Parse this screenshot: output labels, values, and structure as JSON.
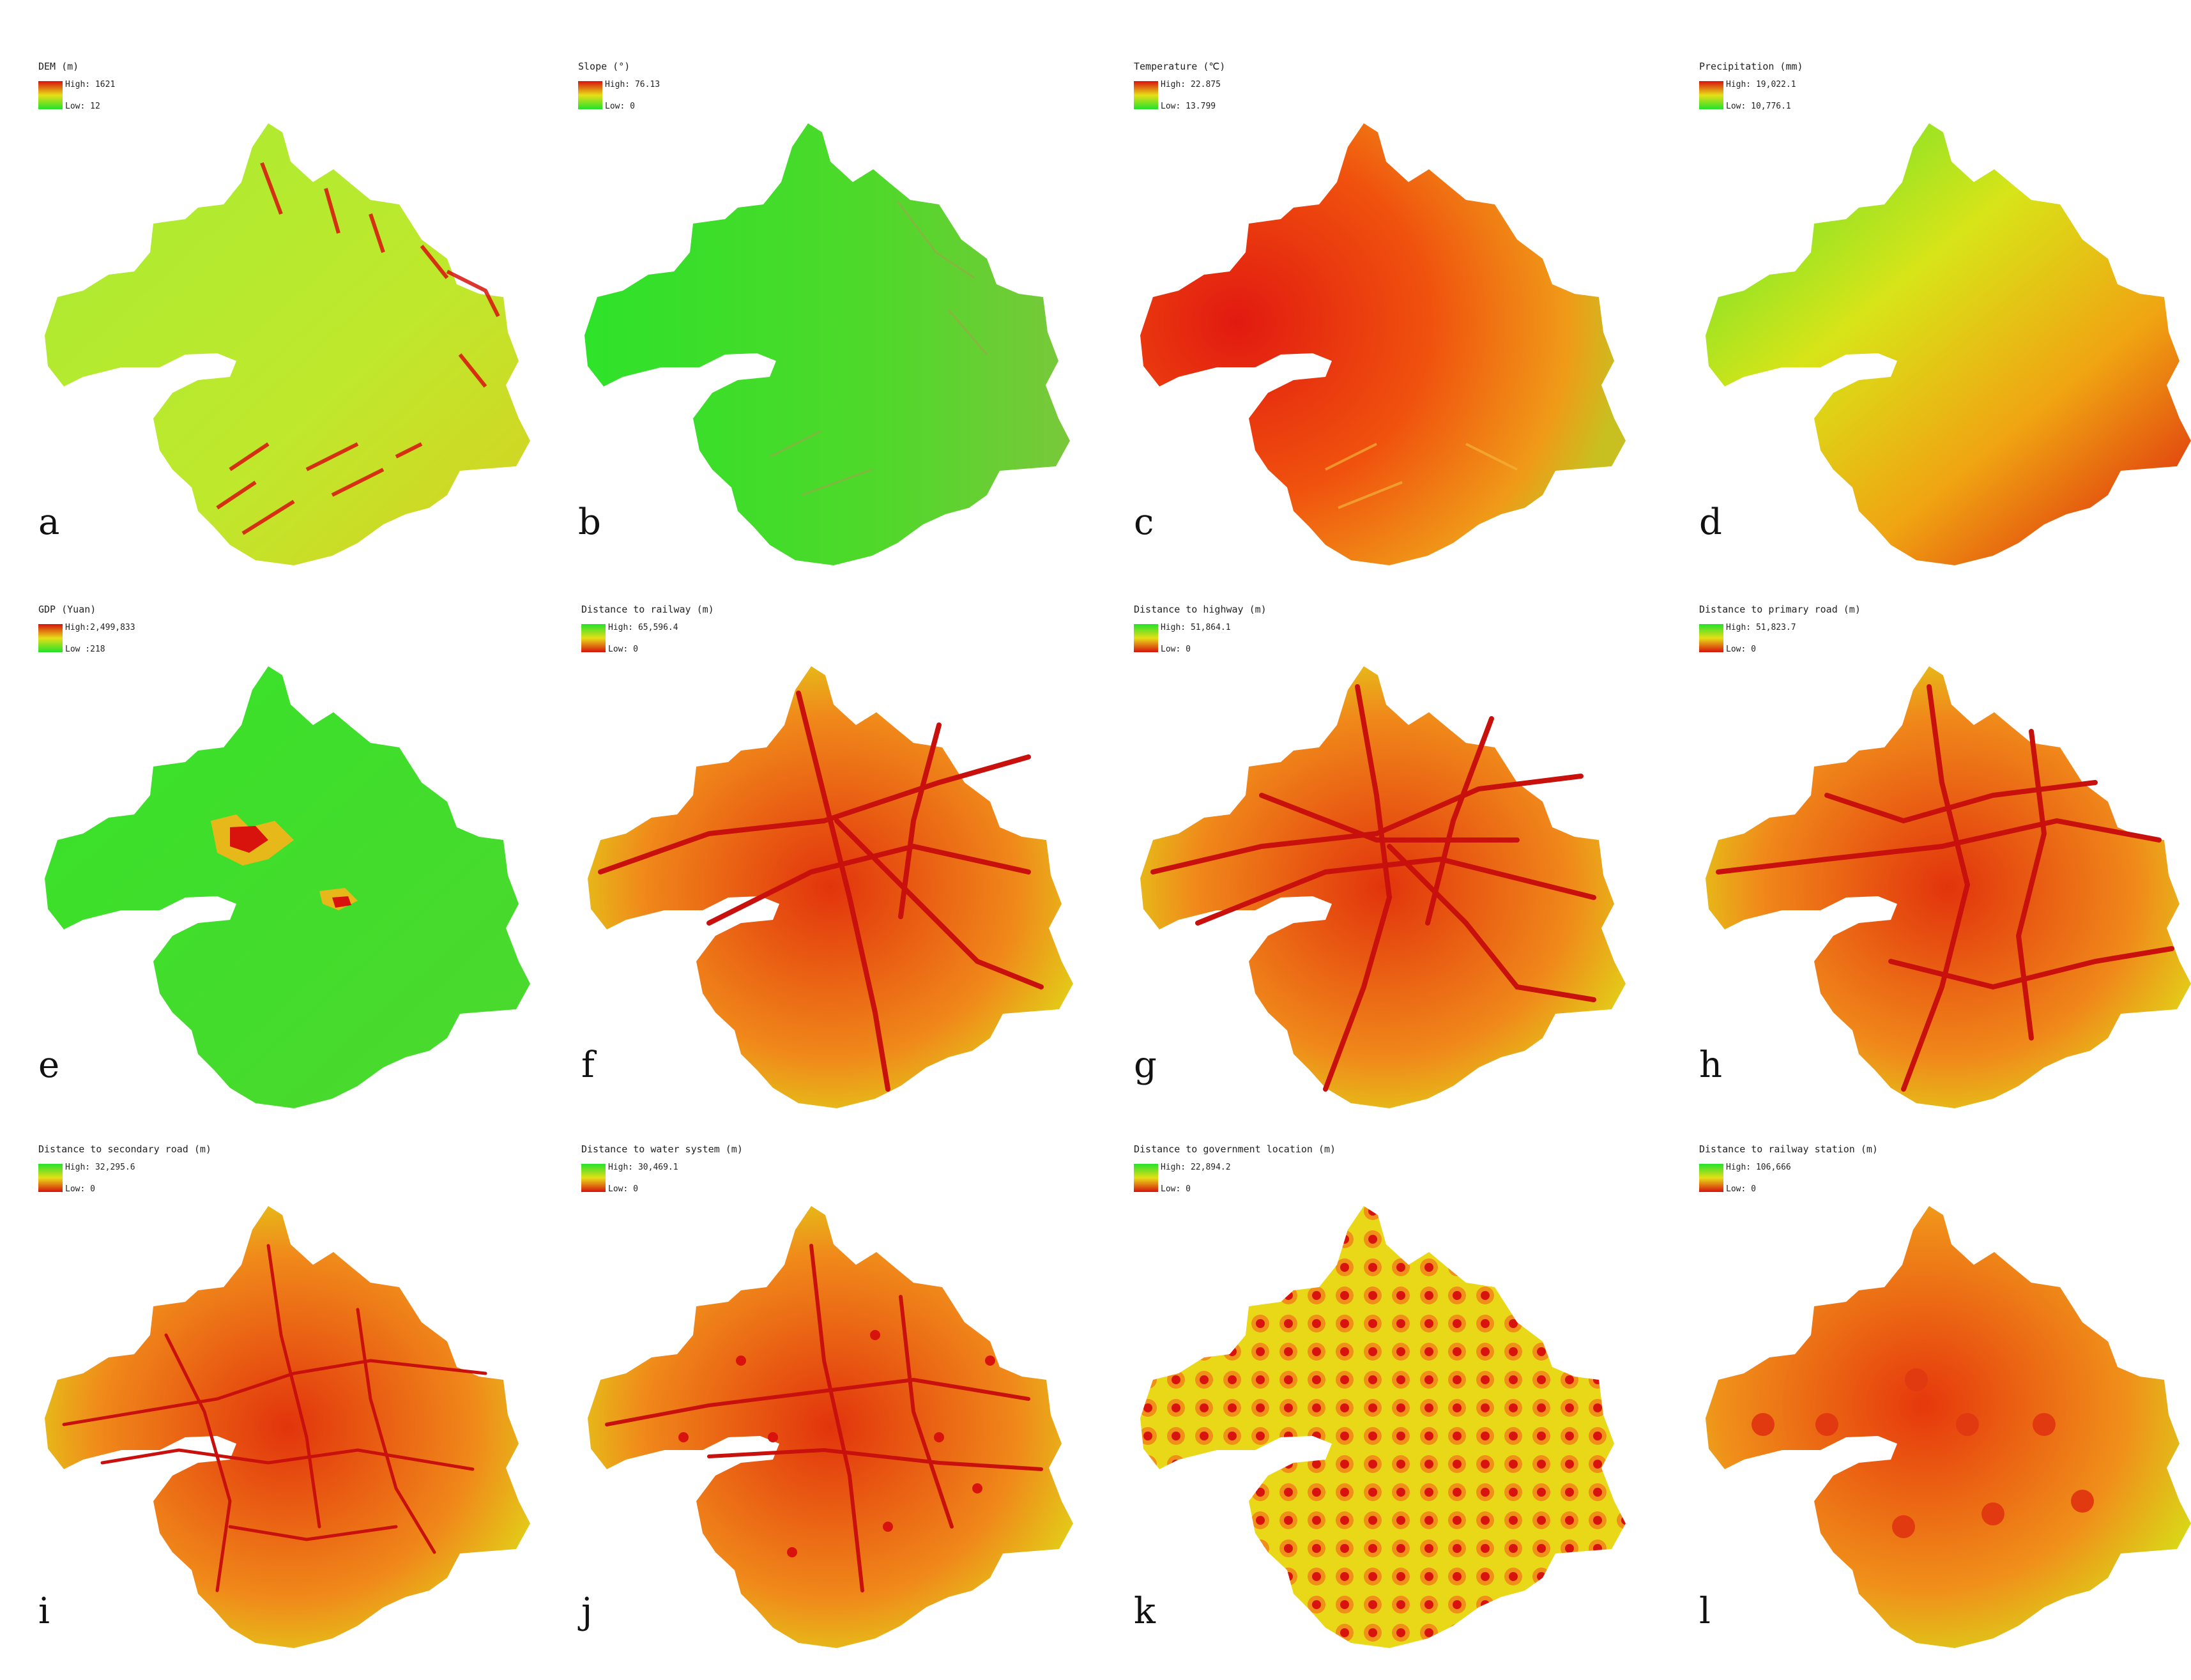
{
  "colors": {
    "red": "#d8120c",
    "orange": "#f07a10",
    "yellow": "#e7df17",
    "yellowgreen": "#a8ec32",
    "green": "#22e22a"
  },
  "panels": [
    {
      "letter": "a",
      "title": "DEM (m)",
      "high": "High: 1621",
      "low": "Low: 12",
      "legend": "green-low"
    },
    {
      "letter": "b",
      "title": "Slope (°)",
      "high": "High: 76.13",
      "low": "Low: 0",
      "legend": "green-low"
    },
    {
      "letter": "c",
      "title": "Temperature (℃)",
      "high": "High: 22.875",
      "low": "Low: 13.799",
      "legend": "green-low"
    },
    {
      "letter": "d",
      "title": "Precipitation (mm)",
      "high": "High: 19,022.1",
      "low": "Low: 10,776.1",
      "legend": "green-low"
    },
    {
      "letter": "e",
      "title": "GDP (Yuan)",
      "high": "High:2,499,833",
      "low": "Low :218",
      "legend": "green-low"
    },
    {
      "letter": "f",
      "title": "Distance to railway (m)",
      "high": "High: 65,596.4",
      "low": "Low: 0",
      "legend": "red-low"
    },
    {
      "letter": "g",
      "title": "Distance to highway (m)",
      "high": "High: 51,864.1",
      "low": "Low: 0",
      "legend": "red-low"
    },
    {
      "letter": "h",
      "title": "Distance to primary road (m)",
      "high": "High: 51,823.7",
      "low": "Low: 0",
      "legend": "red-low"
    },
    {
      "letter": "i",
      "title": "Distance to secondary road (m)",
      "high": "High: 32,295.6",
      "low": "Low: 0",
      "legend": "red-low"
    },
    {
      "letter": "j",
      "title": "Distance to water system (m)",
      "high": "High: 30,469.1",
      "low": "Low: 0",
      "legend": "red-low"
    },
    {
      "letter": "k",
      "title": "Distance to government location (m)",
      "high": "High: 22,894.2",
      "low": "Low: 0",
      "legend": "red-low"
    },
    {
      "letter": "l",
      "title": "Distance to railway station (m)",
      "high": "High: 106,666",
      "low": "Low: 0",
      "legend": "red-low"
    }
  ]
}
